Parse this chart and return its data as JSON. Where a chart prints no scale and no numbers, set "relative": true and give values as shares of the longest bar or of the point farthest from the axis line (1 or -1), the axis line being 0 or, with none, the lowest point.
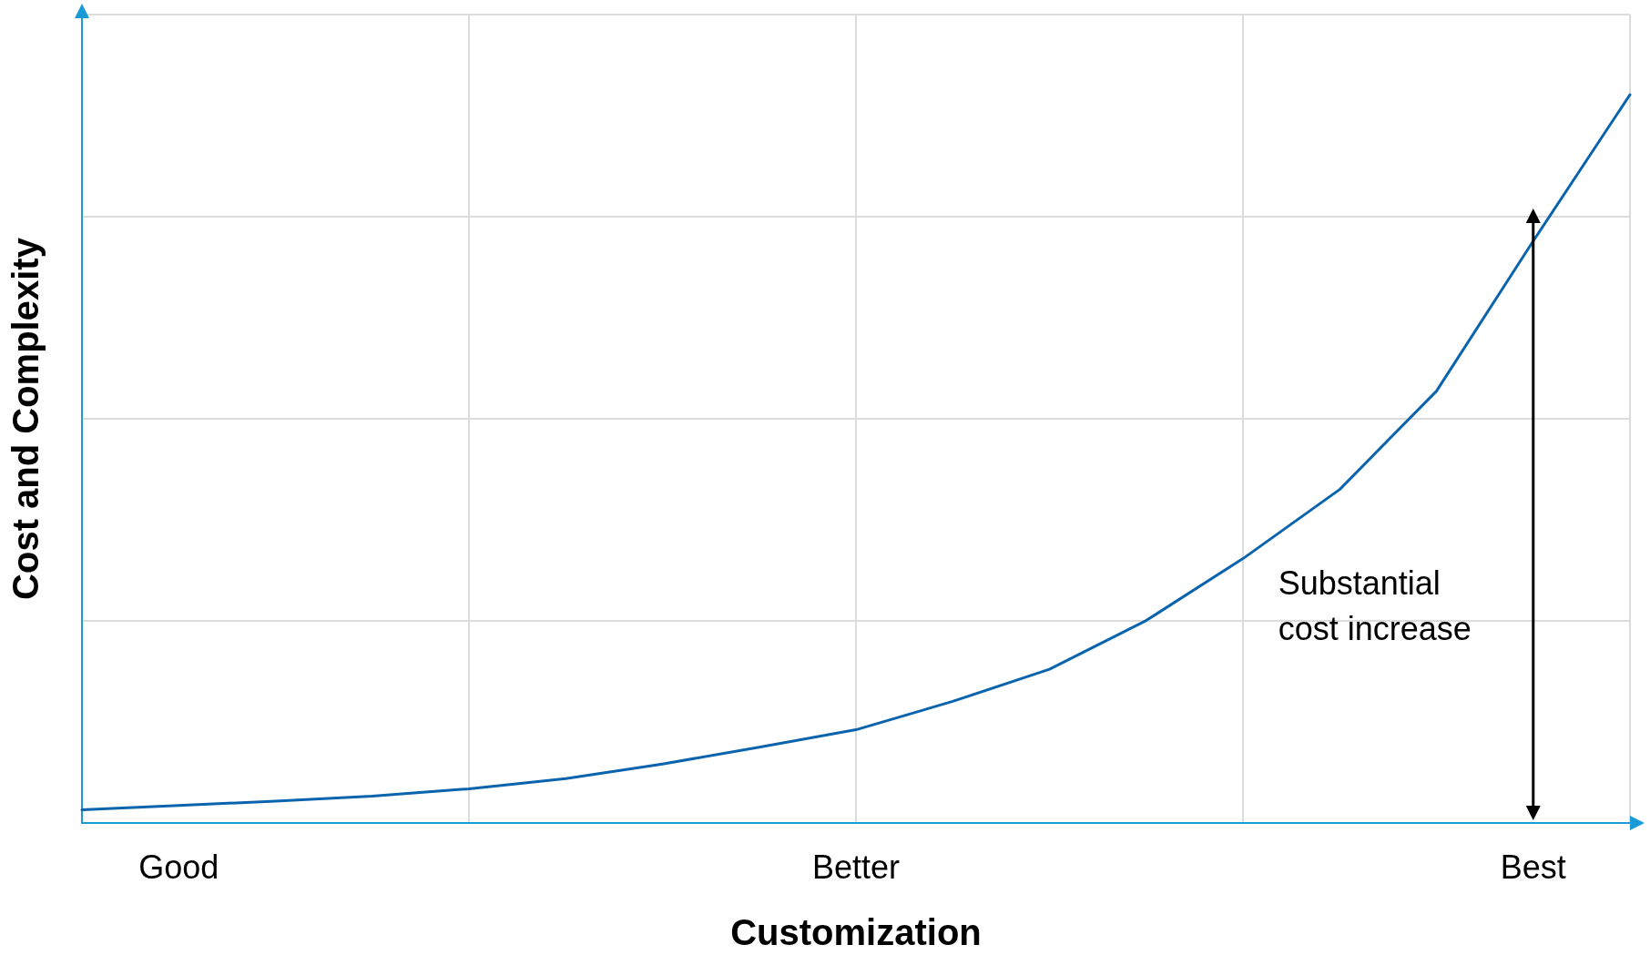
{
  "chart_data": {
    "type": "line",
    "relative": true,
    "xlabel": "Customization",
    "ylabel": "Cost and Complexity",
    "categories": [
      null,
      "Good",
      null,
      null,
      null,
      null,
      null,
      null,
      "Better",
      null,
      null,
      null,
      null,
      null,
      null,
      "Best",
      null
    ],
    "series": [
      {
        "color": "#0a64ad",
        "values": [
          0.018,
          0.024,
          0.03,
          0.037,
          0.047,
          0.061,
          0.081,
          0.104,
          0.128,
          0.167,
          0.211,
          0.278,
          0.363,
          0.458,
          0.593,
          0.799,
          1.0
        ]
      }
    ],
    "annotations": [
      "Substantial cost increase"
    ],
    "grid": true,
    "marker": "none",
    "line_style": "solid"
  }
}
